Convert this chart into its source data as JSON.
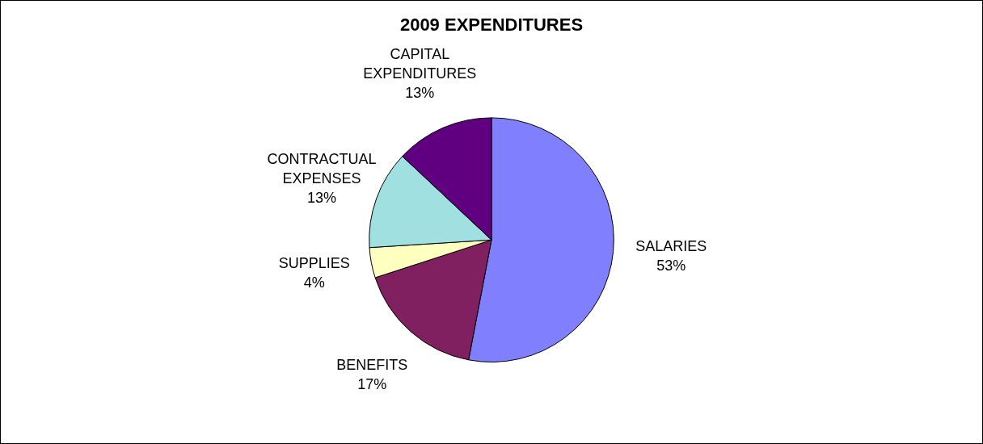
{
  "chart_data": {
    "type": "pie",
    "title": "2009 EXPENDITURES",
    "categories": [
      "SALARIES",
      "BENEFITS",
      "SUPPLIES",
      "CONTRACTUAL EXPENSES",
      "CAPITAL EXPENDITURES"
    ],
    "values": [
      53,
      17,
      4,
      13,
      13
    ],
    "value_labels": [
      "53%",
      "17%",
      "4%",
      "13%",
      "13%"
    ],
    "colors": [
      "#8080ff",
      "#802060",
      "#ffffc0",
      "#a0e0e0",
      "#600080"
    ],
    "legend": false
  }
}
